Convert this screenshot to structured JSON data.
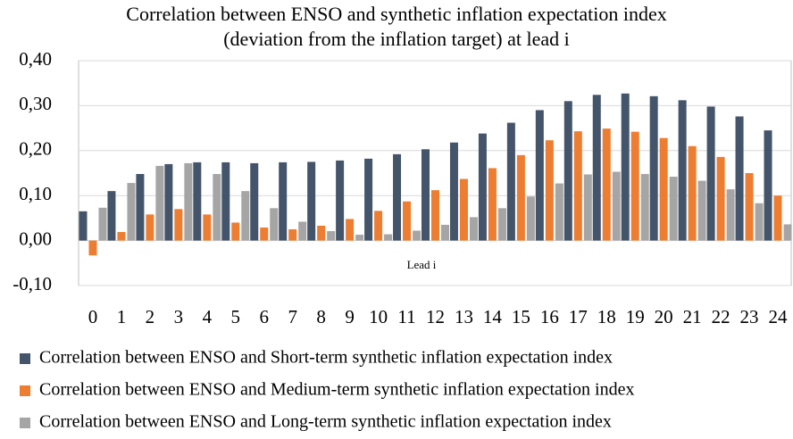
{
  "chart_data": {
    "type": "bar",
    "title": [
      "Correlation between ENSO and synthetic inflation expectation index",
      "(deviation from the inflation target) at lead i"
    ],
    "x_label": "Lead i",
    "categories": [
      "0",
      "1",
      "2",
      "3",
      "4",
      "5",
      "6",
      "7",
      "8",
      "9",
      "10",
      "11",
      "12",
      "13",
      "14",
      "15",
      "16",
      "17",
      "18",
      "19",
      "20",
      "21",
      "22",
      "23",
      "24"
    ],
    "series": [
      {
        "name": "Correlation between ENSO and Short-term synthetic inflation expectation index",
        "color": "#44546a",
        "values": [
          0.065,
          0.11,
          0.148,
          0.17,
          0.174,
          0.174,
          0.172,
          0.174,
          0.175,
          0.178,
          0.182,
          0.192,
          0.203,
          0.218,
          0.238,
          0.262,
          0.29,
          0.31,
          0.324,
          0.327,
          0.321,
          0.312,
          0.298,
          0.276,
          0.245
        ]
      },
      {
        "name": "Correlation between ENSO and Medium-term synthetic inflation expectation index",
        "color": "#ed7d31",
        "values": [
          -0.033,
          0.019,
          0.058,
          0.07,
          0.058,
          0.04,
          0.029,
          0.025,
          0.033,
          0.048,
          0.066,
          0.087,
          0.112,
          0.137,
          0.161,
          0.19,
          0.223,
          0.243,
          0.249,
          0.242,
          0.228,
          0.21,
          0.186,
          0.15,
          0.1
        ]
      },
      {
        "name": "Correlation between ENSO and Long-term synthetic inflation expectation index",
        "color": "#a5a5a5",
        "values": [
          0.073,
          0.128,
          0.166,
          0.172,
          0.148,
          0.11,
          0.072,
          0.042,
          0.021,
          0.013,
          0.014,
          0.022,
          0.035,
          0.052,
          0.072,
          0.098,
          0.127,
          0.147,
          0.153,
          0.148,
          0.142,
          0.133,
          0.114,
          0.083,
          0.036
        ]
      }
    ],
    "ylim": [
      -0.1,
      0.4
    ],
    "yticks": [
      {
        "value": -0.1,
        "label": "-0,10"
      },
      {
        "value": 0,
        "label": "0,00"
      },
      {
        "value": 0.1,
        "label": "0,10"
      },
      {
        "value": 0.2,
        "label": "0,20"
      },
      {
        "value": 0.3,
        "label": "0,30"
      },
      {
        "value": 0.4,
        "label": "0,40"
      }
    ],
    "grid": true,
    "legend": "bottom"
  }
}
